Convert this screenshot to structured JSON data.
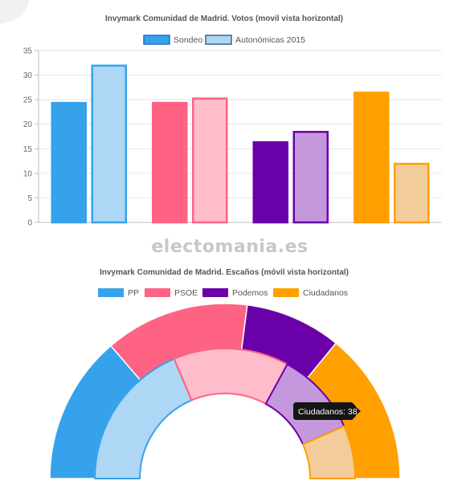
{
  "watermark": "electomania.es",
  "chart_data": [
    {
      "type": "bar",
      "title": "Invymark Comunidad de Madrid. Votos (movil vista horizontal)",
      "categories": [
        "PP",
        "PSOE",
        "Podemos",
        "Ciudadanos"
      ],
      "series": [
        {
          "name": "Sondeo",
          "values": [
            24.5,
            24.5,
            16.5,
            26.6
          ],
          "colors": [
            "#36a2eb",
            "#ff6384",
            "#6a00a8",
            "#ff9f00"
          ],
          "borders": [
            "#36a2eb",
            "#ff6384",
            "#6a00a8",
            "#ff9f00"
          ]
        },
        {
          "name": "Autonómicas 2015",
          "values": [
            32.1,
            25.4,
            18.6,
            12.1
          ],
          "colors": [
            "#aed6f5",
            "#ffbdcb",
            "#c597dd",
            "#f2cc9b"
          ],
          "borders": [
            "#36a2eb",
            "#ff6384",
            "#6a00a8",
            "#ff9f00"
          ]
        }
      ],
      "legend_colors": [
        {
          "fill": "#36a2eb",
          "border": "#1e73be"
        },
        {
          "fill": "#aed6f5",
          "border": "#36668f"
        }
      ],
      "ylim": [
        0,
        35
      ],
      "yticks": [
        0,
        5,
        10,
        15,
        20,
        25,
        30,
        35
      ],
      "grid": true,
      "legend": "top"
    },
    {
      "type": "pie",
      "title": "Invymark Comunidad de Madrid. Escaños (móvil vista horizontal)",
      "labels": [
        "PP",
        "PSOE",
        "Podemos",
        "Ciudadanos"
      ],
      "colors": [
        "#36a2eb",
        "#ff6384",
        "#6a00a8",
        "#ff9f00"
      ],
      "legend": "top",
      "semicircle": true,
      "rings": [
        {
          "name": "Sondeo",
          "values": [
            37,
            36,
            24,
            38
          ],
          "colors": [
            "#36a2eb",
            "#ff6384",
            "#6a00a8",
            "#ff9f00"
          ]
        },
        {
          "name": "Autonómicas 2015",
          "values": [
            48,
            37,
            27,
            17
          ],
          "colors": [
            "#aed6f5",
            "#ffbdcb",
            "#c597dd",
            "#f2cc9b"
          ],
          "borders": [
            "#36a2eb",
            "#ff6384",
            "#6a00a8",
            "#ff9f00"
          ]
        }
      ],
      "tooltip": {
        "label": "Ciudadanos",
        "value": 38
      }
    }
  ]
}
